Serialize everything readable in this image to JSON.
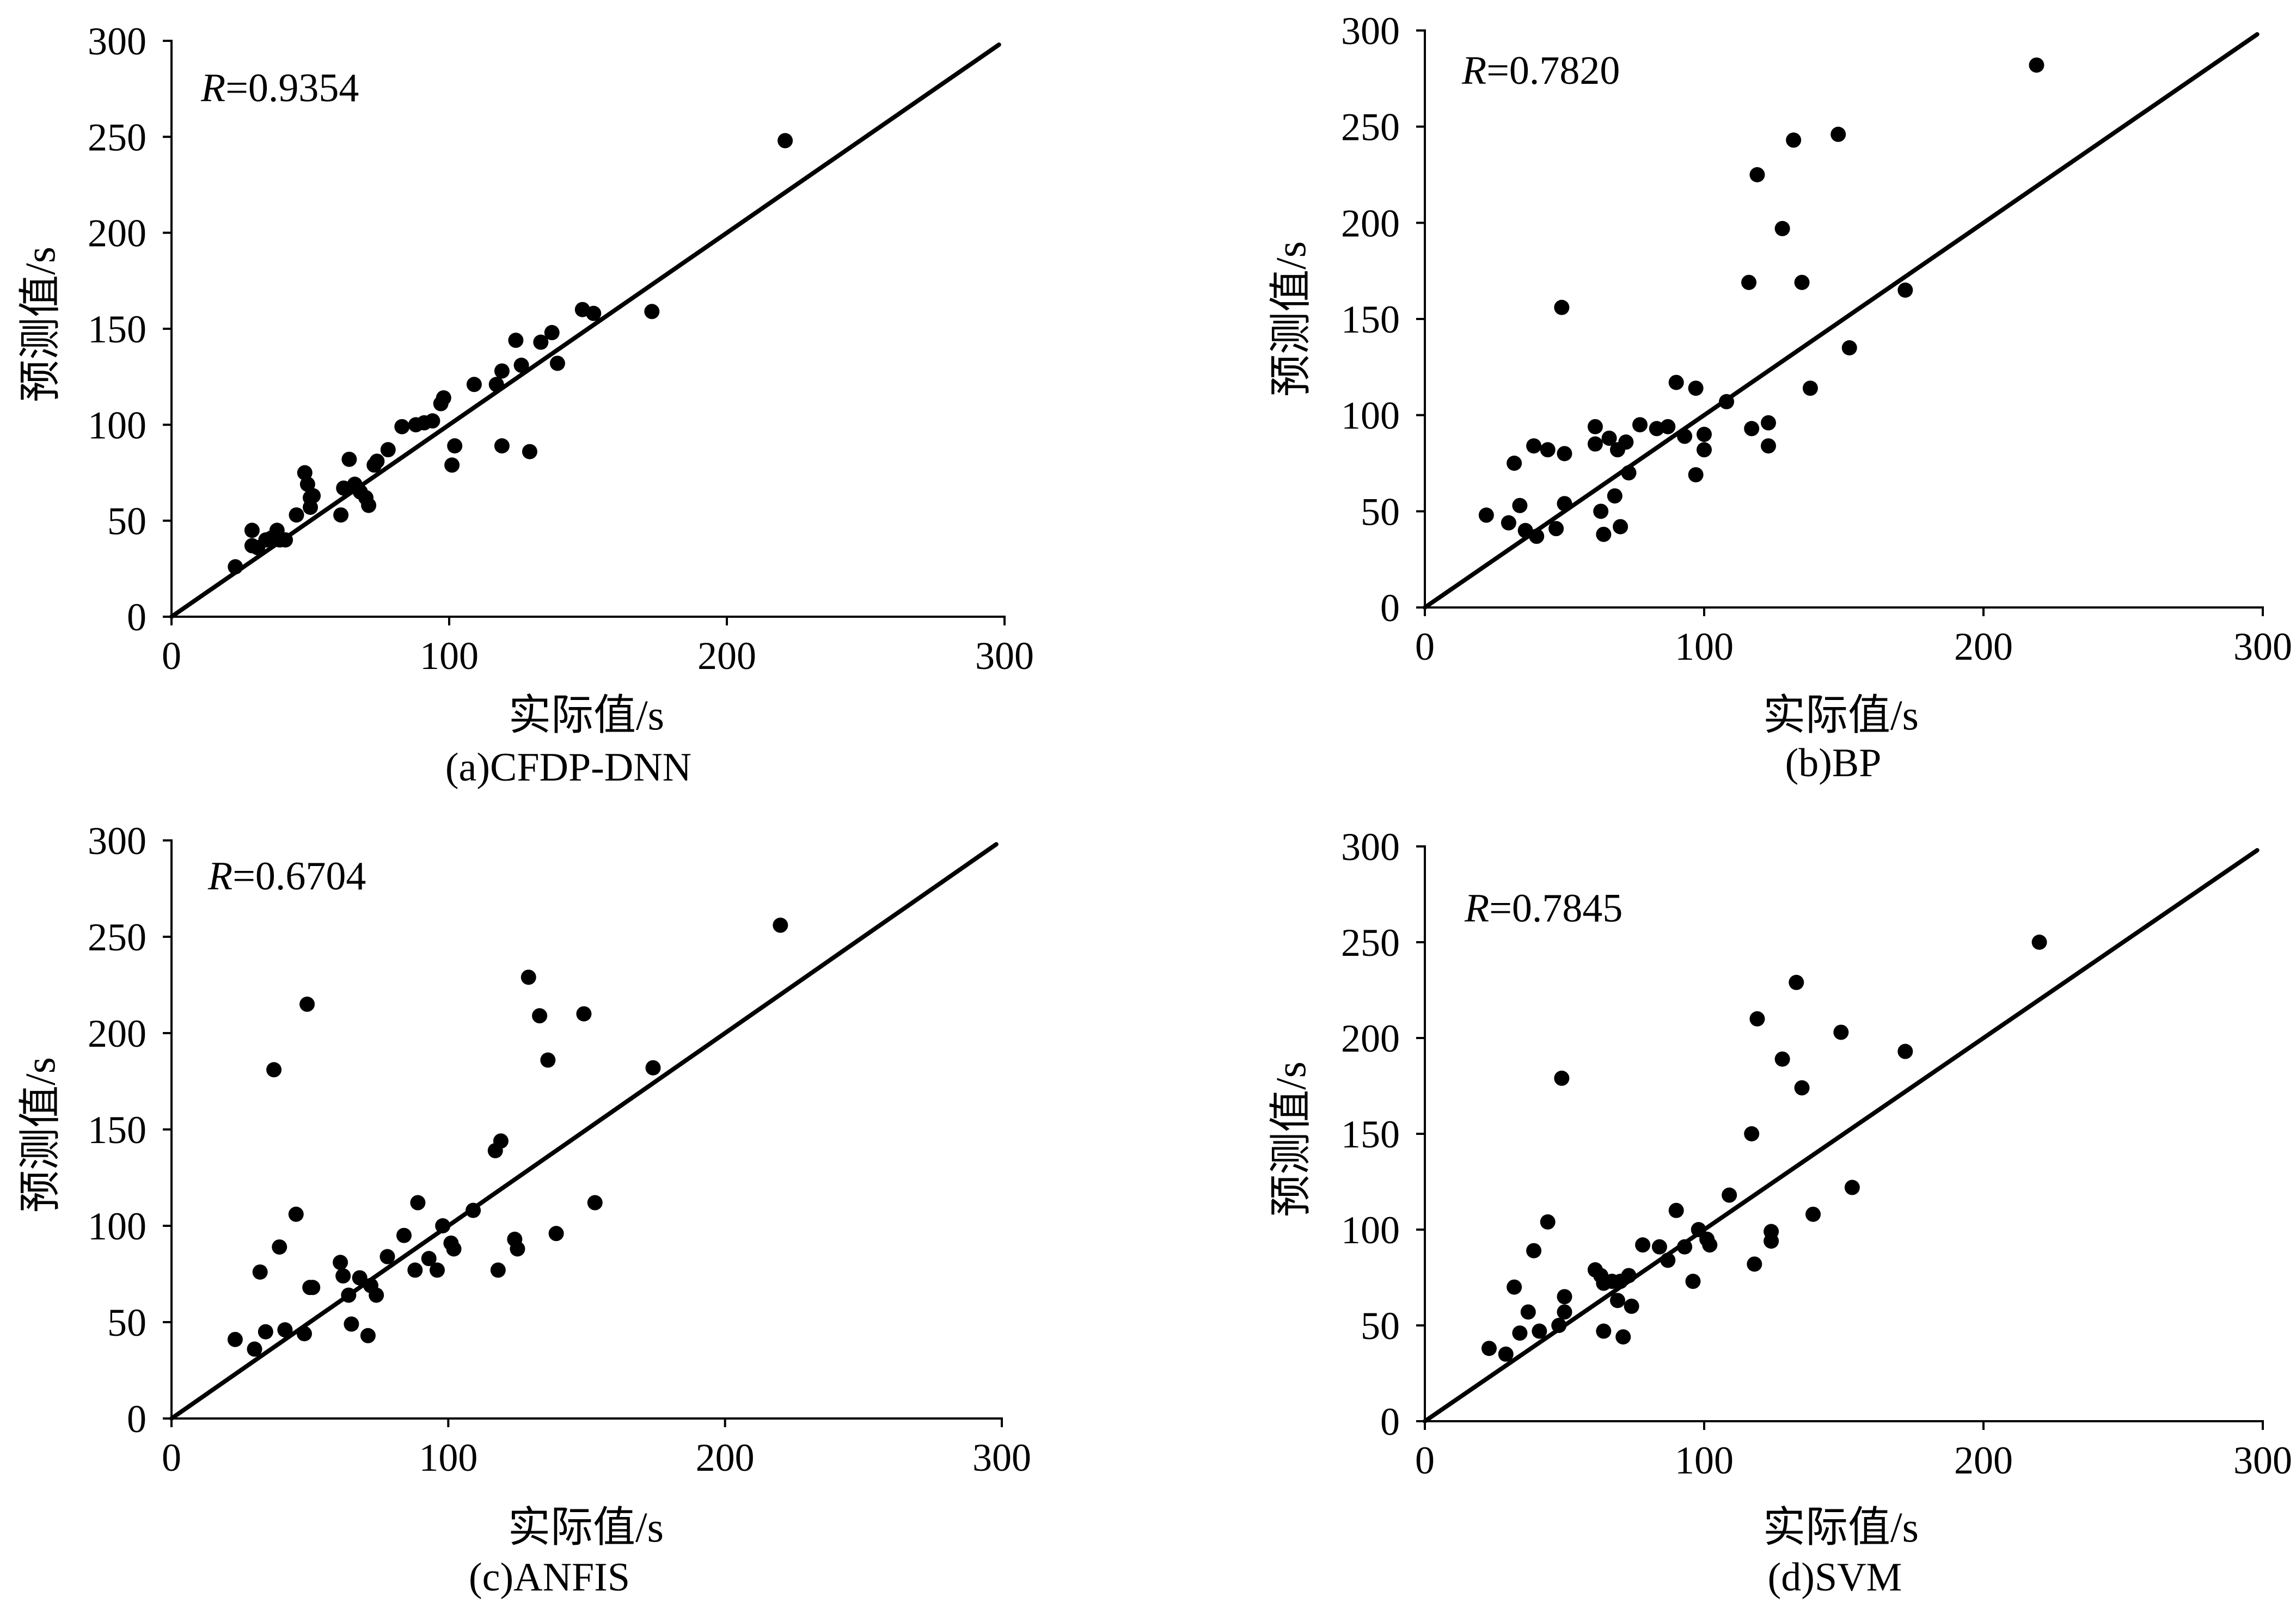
{
  "colors": {
    "background": "#ffffff",
    "marker": "#000000",
    "line": "#000000",
    "axis": "#000000",
    "text": "#000000"
  },
  "chart_data": [
    {
      "type": "scatter",
      "caption": "(a)CFDP-DNN",
      "xlabel": "实际值/s",
      "ylabel": "预测值/s",
      "xlim": [
        0,
        300
      ],
      "ylim": [
        0,
        300
      ],
      "x_ticks": [
        0,
        100,
        200,
        300
      ],
      "y_ticks": [
        0,
        50,
        100,
        150,
        200,
        250,
        300
      ],
      "grid": false,
      "annotation": {
        "symbol": "R",
        "value": "=0.9354"
      },
      "reference_line": {
        "x": [
          0,
          298
        ],
        "y": [
          0,
          298
        ]
      },
      "points": [
        [
          23,
          26
        ],
        [
          29,
          45
        ],
        [
          29,
          37
        ],
        [
          31,
          36
        ],
        [
          34,
          40
        ],
        [
          36,
          41
        ],
        [
          38,
          45
        ],
        [
          39,
          40
        ],
        [
          41,
          40
        ],
        [
          45,
          53
        ],
        [
          48,
          75
        ],
        [
          49,
          69
        ],
        [
          50,
          62
        ],
        [
          50,
          57
        ],
        [
          51,
          63
        ],
        [
          61,
          53
        ],
        [
          62,
          67
        ],
        [
          64,
          82
        ],
        [
          66,
          69
        ],
        [
          68,
          65
        ],
        [
          70,
          62
        ],
        [
          71,
          58
        ],
        [
          73,
          79
        ],
        [
          74,
          81
        ],
        [
          78,
          87
        ],
        [
          83,
          99
        ],
        [
          88,
          100
        ],
        [
          91,
          101
        ],
        [
          94,
          102
        ],
        [
          97,
          111
        ],
        [
          98,
          114
        ],
        [
          101,
          79
        ],
        [
          102,
          89
        ],
        [
          109,
          121
        ],
        [
          117,
          121
        ],
        [
          119,
          128
        ],
        [
          119,
          89
        ],
        [
          124,
          144
        ],
        [
          126,
          131
        ],
        [
          129,
          86
        ],
        [
          133,
          143
        ],
        [
          137,
          148
        ],
        [
          139,
          132
        ],
        [
          148,
          160
        ],
        [
          152,
          158
        ],
        [
          173,
          159
        ],
        [
          221,
          248
        ]
      ]
    },
    {
      "type": "scatter",
      "caption": "(b)BP",
      "xlabel": "实际值/s",
      "ylabel": "预测值/s",
      "xlim": [
        0,
        300
      ],
      "ylim": [
        0,
        300
      ],
      "x_ticks": [
        0,
        100,
        200,
        300
      ],
      "y_ticks": [
        0,
        50,
        100,
        150,
        200,
        250,
        300
      ],
      "grid": false,
      "annotation": {
        "symbol": "R",
        "value": "=0.7820"
      },
      "reference_line": {
        "x": [
          0,
          298
        ],
        "y": [
          0,
          298
        ]
      },
      "points": [
        [
          22,
          48
        ],
        [
          30,
          44
        ],
        [
          32,
          75
        ],
        [
          34,
          53
        ],
        [
          36,
          40
        ],
        [
          39,
          84
        ],
        [
          40,
          37
        ],
        [
          44,
          82
        ],
        [
          47,
          41
        ],
        [
          49,
          156
        ],
        [
          50,
          80
        ],
        [
          50,
          54
        ],
        [
          61,
          94
        ],
        [
          61,
          85
        ],
        [
          63,
          50
        ],
        [
          64,
          38
        ],
        [
          66,
          88
        ],
        [
          68,
          58
        ],
        [
          69,
          82
        ],
        [
          70,
          42
        ],
        [
          72,
          86
        ],
        [
          73,
          70
        ],
        [
          77,
          95
        ],
        [
          83,
          93
        ],
        [
          87,
          94
        ],
        [
          90,
          117
        ],
        [
          93,
          89
        ],
        [
          97,
          114
        ],
        [
          97,
          69
        ],
        [
          100,
          90
        ],
        [
          100,
          82
        ],
        [
          108,
          107
        ],
        [
          116,
          169
        ],
        [
          117,
          93
        ],
        [
          119,
          225
        ],
        [
          123,
          96
        ],
        [
          123,
          84
        ],
        [
          128,
          197
        ],
        [
          132,
          243
        ],
        [
          135,
          169
        ],
        [
          138,
          114
        ],
        [
          148,
          246
        ],
        [
          152,
          135
        ],
        [
          172,
          165
        ],
        [
          219,
          282
        ]
      ]
    },
    {
      "type": "scatter",
      "caption": "(c)ANFIS",
      "xlabel": "实际值/s",
      "ylabel": "预测值/s",
      "xlim": [
        0,
        300
      ],
      "ylim": [
        0,
        300
      ],
      "x_ticks": [
        0,
        100,
        200,
        300
      ],
      "y_ticks": [
        0,
        50,
        100,
        150,
        200,
        250,
        300
      ],
      "grid": false,
      "annotation": {
        "symbol": "R",
        "value": "=0.6704"
      },
      "reference_line": {
        "x": [
          0,
          298
        ],
        "y": [
          0,
          298
        ]
      },
      "points": [
        [
          23,
          41
        ],
        [
          30,
          36
        ],
        [
          32,
          76
        ],
        [
          34,
          45
        ],
        [
          37,
          181
        ],
        [
          39,
          89
        ],
        [
          41,
          46
        ],
        [
          45,
          106
        ],
        [
          48,
          44
        ],
        [
          49,
          215
        ],
        [
          50,
          68
        ],
        [
          51,
          68
        ],
        [
          61,
          81
        ],
        [
          62,
          74
        ],
        [
          64,
          64
        ],
        [
          65,
          49
        ],
        [
          68,
          73
        ],
        [
          71,
          43
        ],
        [
          72,
          69
        ],
        [
          74,
          64
        ],
        [
          78,
          84
        ],
        [
          84,
          95
        ],
        [
          88,
          77
        ],
        [
          89,
          112
        ],
        [
          93,
          83
        ],
        [
          96,
          77
        ],
        [
          98,
          100
        ],
        [
          101,
          91
        ],
        [
          102,
          88
        ],
        [
          109,
          108
        ],
        [
          117,
          139
        ],
        [
          119,
          144
        ],
        [
          118,
          77
        ],
        [
          124,
          93
        ],
        [
          125,
          88
        ],
        [
          129,
          229
        ],
        [
          133,
          209
        ],
        [
          136,
          186
        ],
        [
          139,
          96
        ],
        [
          149,
          210
        ],
        [
          153,
          112
        ],
        [
          174,
          182
        ],
        [
          220,
          256
        ]
      ]
    },
    {
      "type": "scatter",
      "caption": "(d)SVM",
      "xlabel": "实际值/s",
      "ylabel": "预测值/s",
      "xlim": [
        0,
        300
      ],
      "ylim": [
        0,
        300
      ],
      "x_ticks": [
        0,
        100,
        200,
        300
      ],
      "y_ticks": [
        0,
        50,
        100,
        150,
        200,
        250,
        300
      ],
      "grid": false,
      "annotation": {
        "symbol": "R",
        "value": "=0.7845"
      },
      "reference_line": {
        "x": [
          0,
          298
        ],
        "y": [
          0,
          298
        ]
      },
      "points": [
        [
          23,
          38
        ],
        [
          29,
          35
        ],
        [
          32,
          70
        ],
        [
          34,
          46
        ],
        [
          37,
          57
        ],
        [
          39,
          89
        ],
        [
          41,
          47
        ],
        [
          44,
          104
        ],
        [
          48,
          50
        ],
        [
          49,
          179
        ],
        [
          50,
          65
        ],
        [
          50,
          57
        ],
        [
          61,
          79
        ],
        [
          63,
          76
        ],
        [
          64,
          72
        ],
        [
          64,
          47
        ],
        [
          67,
          73
        ],
        [
          69,
          63
        ],
        [
          70,
          73
        ],
        [
          71,
          44
        ],
        [
          73,
          76
        ],
        [
          74,
          60
        ],
        [
          78,
          92
        ],
        [
          84,
          91
        ],
        [
          87,
          84
        ],
        [
          90,
          110
        ],
        [
          93,
          91
        ],
        [
          96,
          73
        ],
        [
          98,
          100
        ],
        [
          101,
          95
        ],
        [
          102,
          92
        ],
        [
          109,
          118
        ],
        [
          117,
          150
        ],
        [
          118,
          82
        ],
        [
          119,
          210
        ],
        [
          124,
          99
        ],
        [
          124,
          94
        ],
        [
          128,
          189
        ],
        [
          133,
          229
        ],
        [
          135,
          174
        ],
        [
          139,
          108
        ],
        [
          149,
          203
        ],
        [
          153,
          122
        ],
        [
          172,
          193
        ],
        [
          220,
          250
        ]
      ]
    }
  ]
}
